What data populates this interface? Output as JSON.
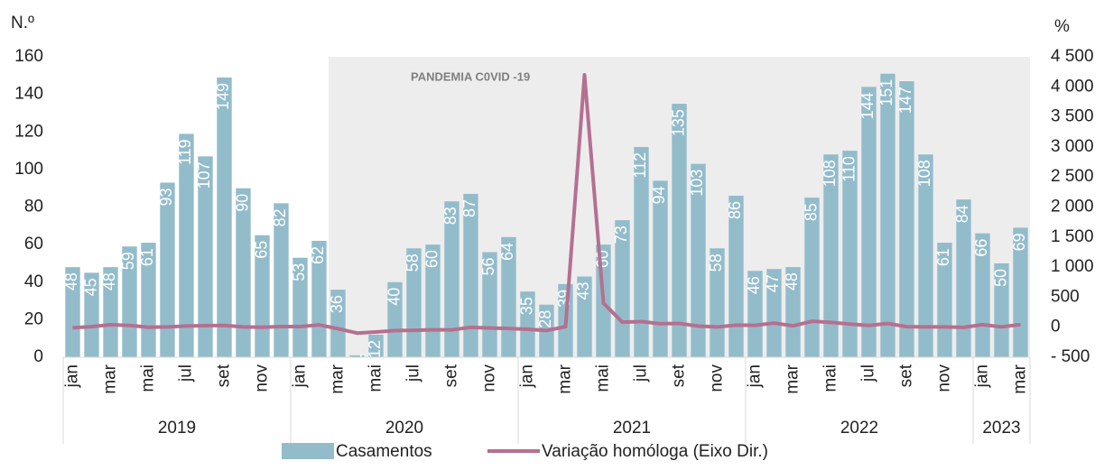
{
  "chart_data": {
    "type": "bar_line",
    "y_axis_label": "N.º",
    "y2_axis_label": "%",
    "annotation": "PANDEMIA C0VID -19",
    "categories": [
      "jan",
      null,
      "mar",
      null,
      "mai",
      null,
      "jul",
      null,
      "set",
      null,
      "nov",
      null,
      "jan",
      null,
      "mar",
      null,
      "mai",
      null,
      "jul",
      null,
      "set",
      null,
      "nov",
      null,
      "jan",
      null,
      "mar",
      null,
      "mai",
      null,
      "jul",
      null,
      "set",
      null,
      "nov",
      null,
      "jan",
      null,
      "mar",
      null,
      "mai",
      null,
      "jul",
      null,
      "set",
      null,
      "nov",
      null,
      "jan",
      null,
      "mar"
    ],
    "year_groups": [
      "2019",
      "2020",
      "2021",
      "2022",
      "2023"
    ],
    "ylim": [
      0,
      160
    ],
    "yticks": [
      0,
      20,
      40,
      60,
      80,
      100,
      120,
      140,
      160
    ],
    "y2lim": [
      -500,
      4500
    ],
    "y2ticks": [
      {
        "value": -500,
        "label": "- 500"
      },
      0,
      500,
      {
        "value": 1000,
        "label": "1 000"
      },
      {
        "value": 1500,
        "label": "1 500"
      },
      {
        "value": 2000,
        "label": "2 000"
      },
      {
        "value": 2500,
        "label": "2 500"
      },
      {
        "value": 3000,
        "label": "3 000"
      },
      {
        "value": 3500,
        "label": "3 500"
      },
      {
        "value": 4000,
        "label": "4 000"
      },
      {
        "value": 4500,
        "label": "4 500"
      }
    ],
    "series": [
      {
        "name": "Casamentos",
        "color": "#93bccb",
        "values": [
          48,
          45,
          48,
          59,
          61,
          93,
          119,
          107,
          149,
          90,
          65,
          82,
          53,
          62,
          36,
          1,
          12,
          40,
          58,
          60,
          83,
          87,
          56,
          64,
          35,
          28,
          39,
          43,
          60,
          73,
          112,
          94,
          135,
          103,
          58,
          86,
          46,
          47,
          48,
          85,
          108,
          110,
          144,
          151,
          147,
          108,
          61,
          84,
          66,
          50,
          69
        ]
      },
      {
        "name": "Variação homóloga (Eixo Dir.)",
        "color": "#b5708f",
        "axis": "y2",
        "values": [
          -10,
          10,
          40,
          30,
          0,
          5,
          20,
          25,
          30,
          5,
          0,
          10,
          10,
          38,
          -25,
          -98,
          -80,
          -57,
          -51,
          -43,
          -44,
          -3,
          -14,
          -22,
          -34,
          -55,
          8,
          4200,
          400,
          83,
          93,
          57,
          63,
          18,
          4,
          34,
          31,
          68,
          23,
          98,
          80,
          51,
          29,
          61,
          9,
          5,
          5,
          -2,
          43,
          6,
          44
        ]
      }
    ]
  }
}
